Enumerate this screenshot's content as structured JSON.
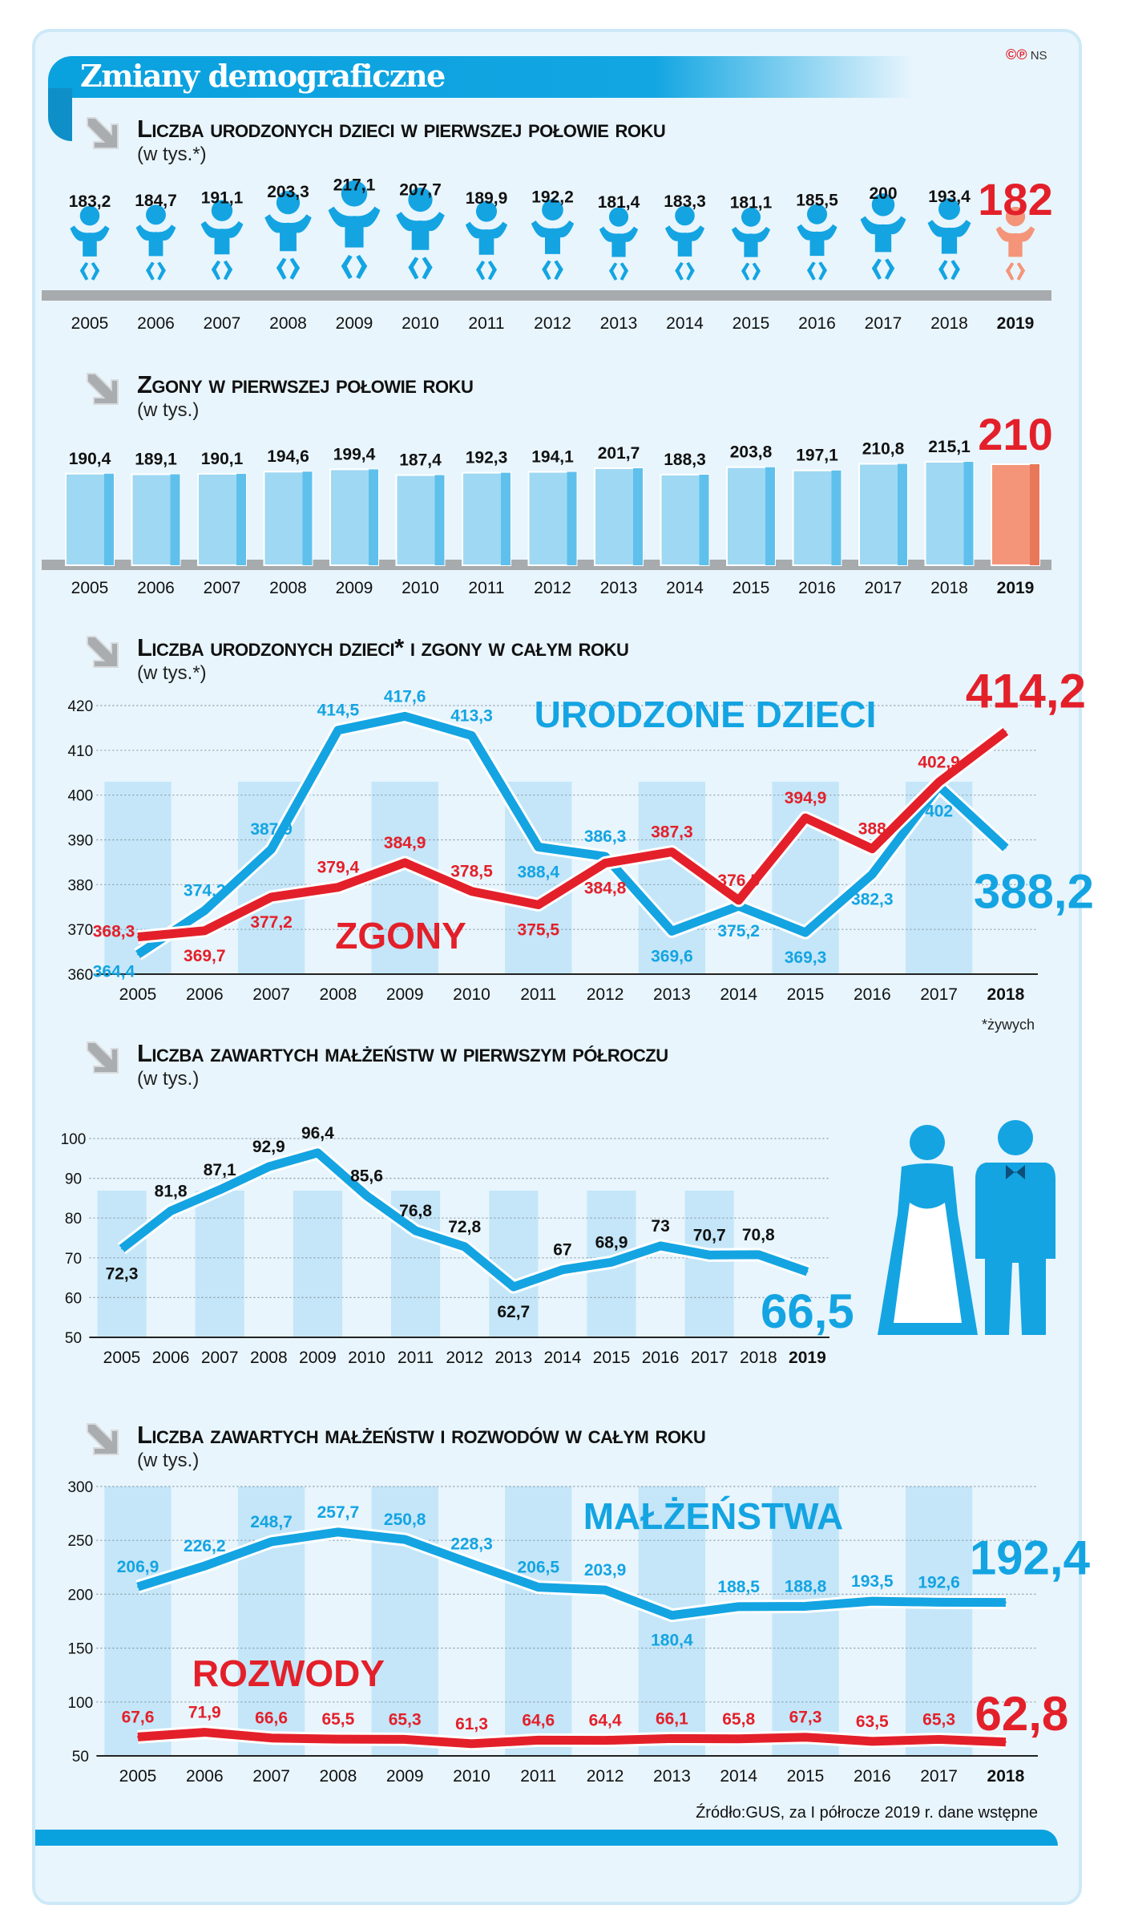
{
  "title": "Zmiany demograficzne",
  "copyright": {
    "symbols": "©℗",
    "author": "NS"
  },
  "colors": {
    "blue": "#14a4e2",
    "red": "#e3202a",
    "orange": "#f4957a",
    "bar": "#9fd8f3",
    "stripe": "#c4e6f8"
  },
  "sections": [
    {
      "title": "Liczba urodzonych dzieci w pierwszej połowie roku",
      "subtitle": "(w tys.*)"
    },
    {
      "title": "Zgony w pierwszej połowie roku",
      "subtitle": "(w tys.)"
    },
    {
      "title": "Liczba urodzonych dzieci* i zgony w całym roku",
      "subtitle": "(w tys.*)"
    },
    {
      "title": "Liczba zawartych małżeństw w pierwszym półroczu",
      "subtitle": "(w tys.)"
    },
    {
      "title": "Liczba zawartych małżeństw i rozwodów w całym roku",
      "subtitle": "(w tys.)"
    }
  ],
  "footnote": "*żywych",
  "source": "Źródło:GUS, za I półrocze 2019 r. dane wstępne",
  "chart_data": [
    {
      "type": "bar",
      "style": "pictogram-baby",
      "categories": [
        "2005",
        "2006",
        "2007",
        "2008",
        "2009",
        "2010",
        "2011",
        "2012",
        "2013",
        "2014",
        "2015",
        "2016",
        "2017",
        "2018",
        "2019"
      ],
      "labels": [
        "183,2",
        "184,7",
        "191,1",
        "203,3",
        "217,1",
        "207,7",
        "189,9",
        "192,2",
        "181,4",
        "183,3",
        "181,1",
        "185,5",
        "200",
        "193,4",
        "182"
      ],
      "values": [
        183.2,
        184.7,
        191.1,
        203.3,
        217.1,
        207.7,
        189.9,
        192.2,
        181.4,
        183.3,
        181.1,
        185.5,
        200,
        193.4,
        182
      ],
      "highlight": "2019"
    },
    {
      "type": "bar",
      "categories": [
        "2005",
        "2006",
        "2007",
        "2008",
        "2009",
        "2010",
        "2011",
        "2012",
        "2013",
        "2014",
        "2015",
        "2016",
        "2017",
        "2018",
        "2019"
      ],
      "labels": [
        "190,4",
        "189,1",
        "190,1",
        "194,6",
        "199,4",
        "187,4",
        "192,3",
        "194,1",
        "201,7",
        "188,3",
        "203,8",
        "197,1",
        "210,8",
        "215,1",
        "210"
      ],
      "values": [
        190.4,
        189.1,
        190.1,
        194.6,
        199.4,
        187.4,
        192.3,
        194.1,
        201.7,
        188.3,
        203.8,
        197.1,
        210.8,
        215.1,
        210
      ],
      "highlight": "2019"
    },
    {
      "type": "line",
      "categories": [
        "2005",
        "2006",
        "2007",
        "2008",
        "2009",
        "2010",
        "2011",
        "2012",
        "2013",
        "2014",
        "2015",
        "2016",
        "2017",
        "2018"
      ],
      "ylim": [
        360,
        420
      ],
      "yticks": [
        "360",
        "370",
        "380",
        "390",
        "400",
        "410",
        "420"
      ],
      "grid": true,
      "series": [
        {
          "name": "URODZONE DZIECI",
          "color": "blue",
          "values": [
            364.4,
            374.2,
            387.9,
            414.5,
            417.6,
            413.3,
            388.4,
            386.3,
            369.6,
            375.2,
            369.3,
            382.3,
            402,
            388.2
          ],
          "labels": [
            "364,4",
            "374,2",
            "387,9",
            "414,5",
            "417,6",
            "413,3",
            "388,4",
            "386,3",
            "369,6",
            "375,2",
            "369,3",
            "382,3",
            "402",
            "388,2"
          ]
        },
        {
          "name": "ZGONY",
          "color": "red",
          "values": [
            368.3,
            369.7,
            377.2,
            379.4,
            384.9,
            378.5,
            375.5,
            384.8,
            387.3,
            376.5,
            394.9,
            388,
            402.9,
            414.2
          ],
          "labels": [
            "368,3",
            "369,7",
            "377,2",
            "379,4",
            "384,9",
            "378,5",
            "375,5",
            "384,8",
            "387,3",
            "376,5",
            "394,9",
            "388",
            "402,9",
            "414,2"
          ]
        }
      ]
    },
    {
      "type": "line",
      "categories": [
        "2005",
        "2006",
        "2007",
        "2008",
        "2009",
        "2010",
        "2011",
        "2012",
        "2013",
        "2014",
        "2015",
        "2016",
        "2017",
        "2018",
        "2019"
      ],
      "ylim": [
        50,
        100
      ],
      "yticks": [
        "50",
        "60",
        "70",
        "80",
        "90",
        "100"
      ],
      "grid": true,
      "series": [
        {
          "values": [
            72.3,
            81.8,
            87.1,
            92.9,
            96.4,
            85.6,
            76.8,
            72.8,
            62.7,
            67,
            68.9,
            73,
            70.7,
            70.8,
            66.5
          ],
          "labels": [
            "72,3",
            "81,8",
            "87,1",
            "92,9",
            "96,4",
            "85,6",
            "76,8",
            "72,8",
            "62,7",
            "67",
            "68,9",
            "73",
            "70,7",
            "70,8",
            "66,5"
          ],
          "color": "blue"
        }
      ]
    },
    {
      "type": "line",
      "categories": [
        "2005",
        "2006",
        "2007",
        "2008",
        "2009",
        "2010",
        "2011",
        "2012",
        "2013",
        "2014",
        "2015",
        "2016",
        "2017",
        "2018"
      ],
      "ylim": [
        50,
        300
      ],
      "yticks": [
        "50",
        "100",
        "150",
        "200",
        "250",
        "300"
      ],
      "grid": true,
      "series": [
        {
          "name": "MAŁŻEŃSTWA",
          "color": "blue",
          "values": [
            206.9,
            226.2,
            248.7,
            257.7,
            250.8,
            228.3,
            206.5,
            203.9,
            180.4,
            188.5,
            188.8,
            193.5,
            192.6,
            192.4
          ],
          "labels": [
            "206,9",
            "226,2",
            "248,7",
            "257,7",
            "250,8",
            "228,3",
            "206,5",
            "203,9",
            "180,4",
            "188,5",
            "188,8",
            "193,5",
            "192,6",
            "192,4"
          ]
        },
        {
          "name": "ROZWODY",
          "color": "red",
          "values": [
            67.6,
            71.9,
            66.6,
            65.5,
            65.3,
            61.3,
            64.6,
            64.4,
            66.1,
            65.8,
            67.3,
            63.5,
            65.3,
            62.8
          ],
          "labels": [
            "67,6",
            "71,9",
            "66,6",
            "65,5",
            "65,3",
            "61,3",
            "64,6",
            "64,4",
            "66,1",
            "65,8",
            "67,3",
            "63,5",
            "65,3",
            "62,8"
          ]
        }
      ]
    }
  ]
}
